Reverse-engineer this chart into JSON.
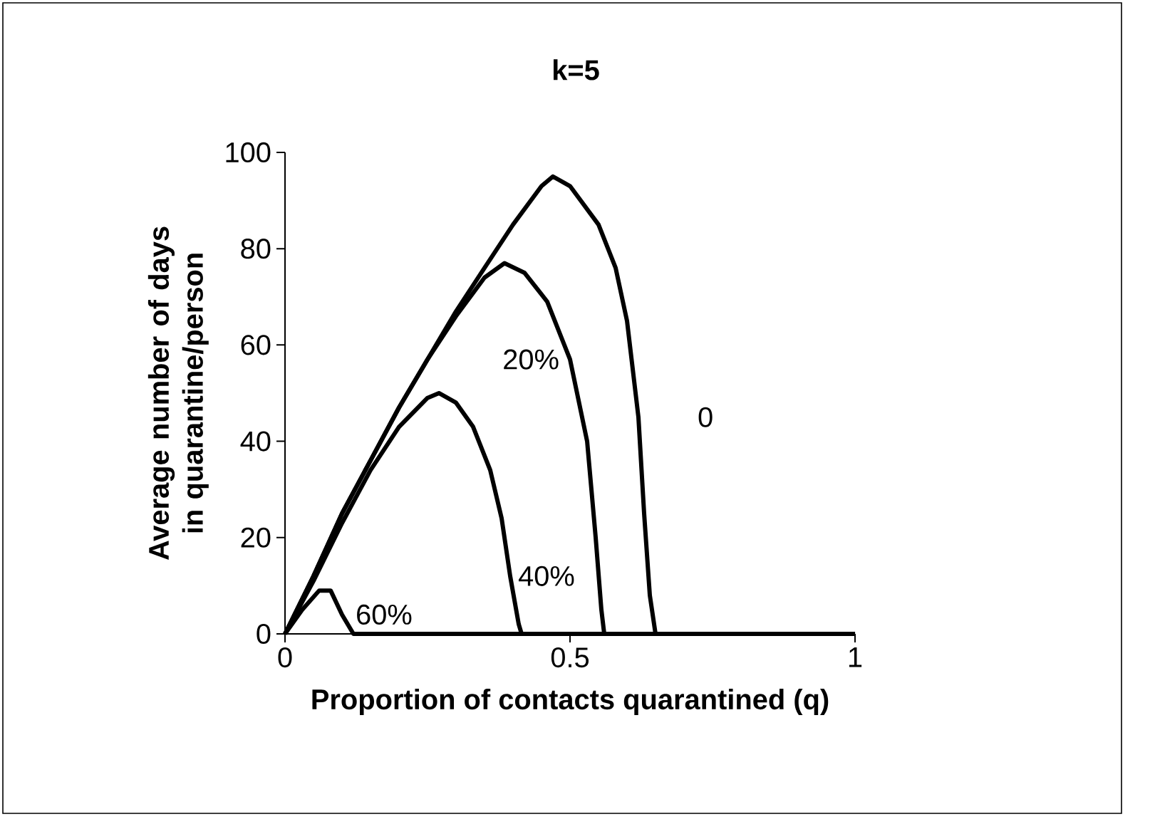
{
  "chart_data": {
    "type": "line",
    "title": "k=5",
    "xlabel": "Proportion of contacts quarantined (q)",
    "ylabel": "Average number of days in quarantine/person",
    "xlim": [
      0,
      1
    ],
    "ylim": [
      0,
      100
    ],
    "xticks": [
      0,
      0.5,
      1
    ],
    "yticks": [
      0,
      20,
      40,
      60,
      80,
      100
    ],
    "grid": false,
    "legend": false,
    "marker": "none",
    "line_style": "solid",
    "series": [
      {
        "name": "0",
        "color": "#000000",
        "x": [
          0,
          0.05,
          0.1,
          0.15,
          0.2,
          0.25,
          0.3,
          0.35,
          0.4,
          0.45,
          0.47,
          0.5,
          0.55,
          0.58,
          0.6,
          0.62,
          0.63,
          0.64,
          0.65,
          1
        ],
        "values": [
          0,
          12,
          25,
          36,
          47,
          57,
          67,
          76,
          85,
          93,
          95,
          93,
          85,
          76,
          65,
          45,
          25,
          8,
          0,
          0
        ]
      },
      {
        "name": "20%",
        "color": "#000000",
        "x": [
          0,
          0.05,
          0.1,
          0.15,
          0.2,
          0.25,
          0.3,
          0.35,
          0.385,
          0.42,
          0.46,
          0.5,
          0.53,
          0.545,
          0.555,
          0.56,
          1
        ],
        "values": [
          0,
          12,
          25,
          36,
          47,
          57,
          66,
          74,
          77,
          75,
          69,
          57,
          40,
          20,
          5,
          0,
          0
        ]
      },
      {
        "name": "40%",
        "color": "#000000",
        "x": [
          0,
          0.05,
          0.1,
          0.15,
          0.2,
          0.25,
          0.27,
          0.3,
          0.33,
          0.36,
          0.38,
          0.395,
          0.41,
          0.415,
          1
        ],
        "values": [
          0,
          11,
          23,
          34,
          43,
          49,
          50,
          48,
          43,
          34,
          24,
          12,
          2,
          0,
          0
        ]
      },
      {
        "name": "60%",
        "color": "#000000",
        "x": [
          0,
          0.03,
          0.06,
          0.08,
          0.1,
          0.12,
          1
        ],
        "values": [
          0,
          5,
          9,
          9,
          4,
          0,
          0
        ]
      }
    ]
  }
}
